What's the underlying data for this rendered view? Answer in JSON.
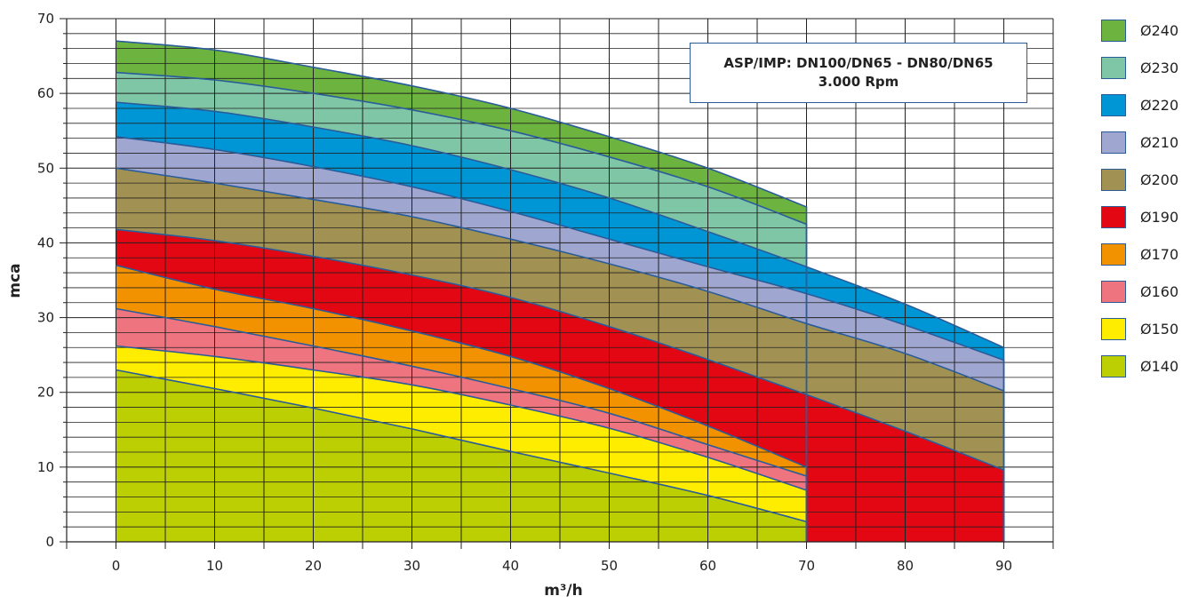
{
  "chart_data": {
    "type": "area",
    "title": "ASP/IMP: DN100/DN65 - DN80/DN65",
    "subtitle": "3.000 Rpm",
    "xlabel": "m³/h",
    "ylabel": "mca",
    "xlim": [
      -5,
      95
    ],
    "ylim": [
      0,
      70
    ],
    "x_ticks": [
      0,
      10,
      20,
      30,
      40,
      50,
      60,
      70,
      80,
      90
    ],
    "y_ticks": [
      0,
      10,
      20,
      30,
      40,
      50,
      60,
      70
    ],
    "grid": true,
    "legend_position": "right",
    "series": [
      {
        "name": "Ø240",
        "color": "#6cb43f",
        "x": [
          0,
          10,
          20,
          30,
          40,
          50,
          60,
          70
        ],
        "y": [
          67,
          65.8,
          63.5,
          61,
          58,
          54.2,
          50,
          44.8
        ]
      },
      {
        "name": "Ø230",
        "color": "#7fc6a6",
        "x": [
          0,
          10,
          20,
          30,
          40,
          50,
          60,
          70
        ],
        "y": [
          62.8,
          61.8,
          60,
          57.8,
          55,
          51.5,
          47.5,
          42.5
        ]
      },
      {
        "name": "Ø220",
        "color": "#0096d6",
        "x": [
          0,
          10,
          20,
          30,
          40,
          50,
          60,
          70,
          80,
          90
        ],
        "y": [
          58.8,
          57.6,
          55.5,
          53,
          49.8,
          46,
          41.5,
          36.8,
          31.8,
          26
        ]
      },
      {
        "name": "Ø210",
        "color": "#9fa6cf",
        "x": [
          0,
          10,
          20,
          30,
          40,
          50,
          60,
          70,
          80,
          90
        ],
        "y": [
          54.2,
          52.5,
          50.2,
          47.5,
          44.2,
          40.5,
          36.8,
          33.2,
          29,
          24.3
        ]
      },
      {
        "name": "Ø200",
        "color": "#a19253",
        "x": [
          0,
          10,
          20,
          30,
          40,
          50,
          60,
          70,
          80,
          90
        ],
        "y": [
          50,
          48,
          45.8,
          43.5,
          40.5,
          37.2,
          33.5,
          29.2,
          25.2,
          20.2
        ]
      },
      {
        "name": "Ø190",
        "color": "#e30613",
        "x": [
          0,
          10,
          20,
          30,
          40,
          50,
          60,
          70,
          80,
          90
        ],
        "y": [
          41.8,
          40.3,
          38.2,
          35.7,
          32.7,
          28.8,
          24.4,
          19.7,
          14.8,
          9.6
        ]
      },
      {
        "name": "Ø170",
        "color": "#f39200",
        "x": [
          0,
          10,
          20,
          30,
          40,
          50,
          60,
          70
        ],
        "y": [
          37,
          33.8,
          31.2,
          28.2,
          24.8,
          20.5,
          15.5,
          10
        ]
      },
      {
        "name": "Ø160",
        "color": "#ee7480",
        "x": [
          0,
          10,
          20,
          30,
          40,
          50,
          60,
          70
        ],
        "y": [
          31.2,
          28.8,
          26.2,
          23.5,
          20.5,
          17.2,
          13,
          8.8
        ]
      },
      {
        "name": "Ø150",
        "color": "#ffed00",
        "x": [
          0,
          10,
          20,
          30,
          40,
          50,
          60,
          70
        ],
        "y": [
          26.2,
          24.8,
          23,
          21,
          18.3,
          15.2,
          11.3,
          6.9
        ]
      },
      {
        "name": "Ø140",
        "color": "#bccf02",
        "x": [
          0,
          10,
          20,
          30,
          40,
          50,
          60,
          70
        ],
        "y": [
          23,
          20.5,
          17.9,
          15.1,
          12.1,
          9.2,
          6.2,
          2.7
        ]
      }
    ]
  }
}
